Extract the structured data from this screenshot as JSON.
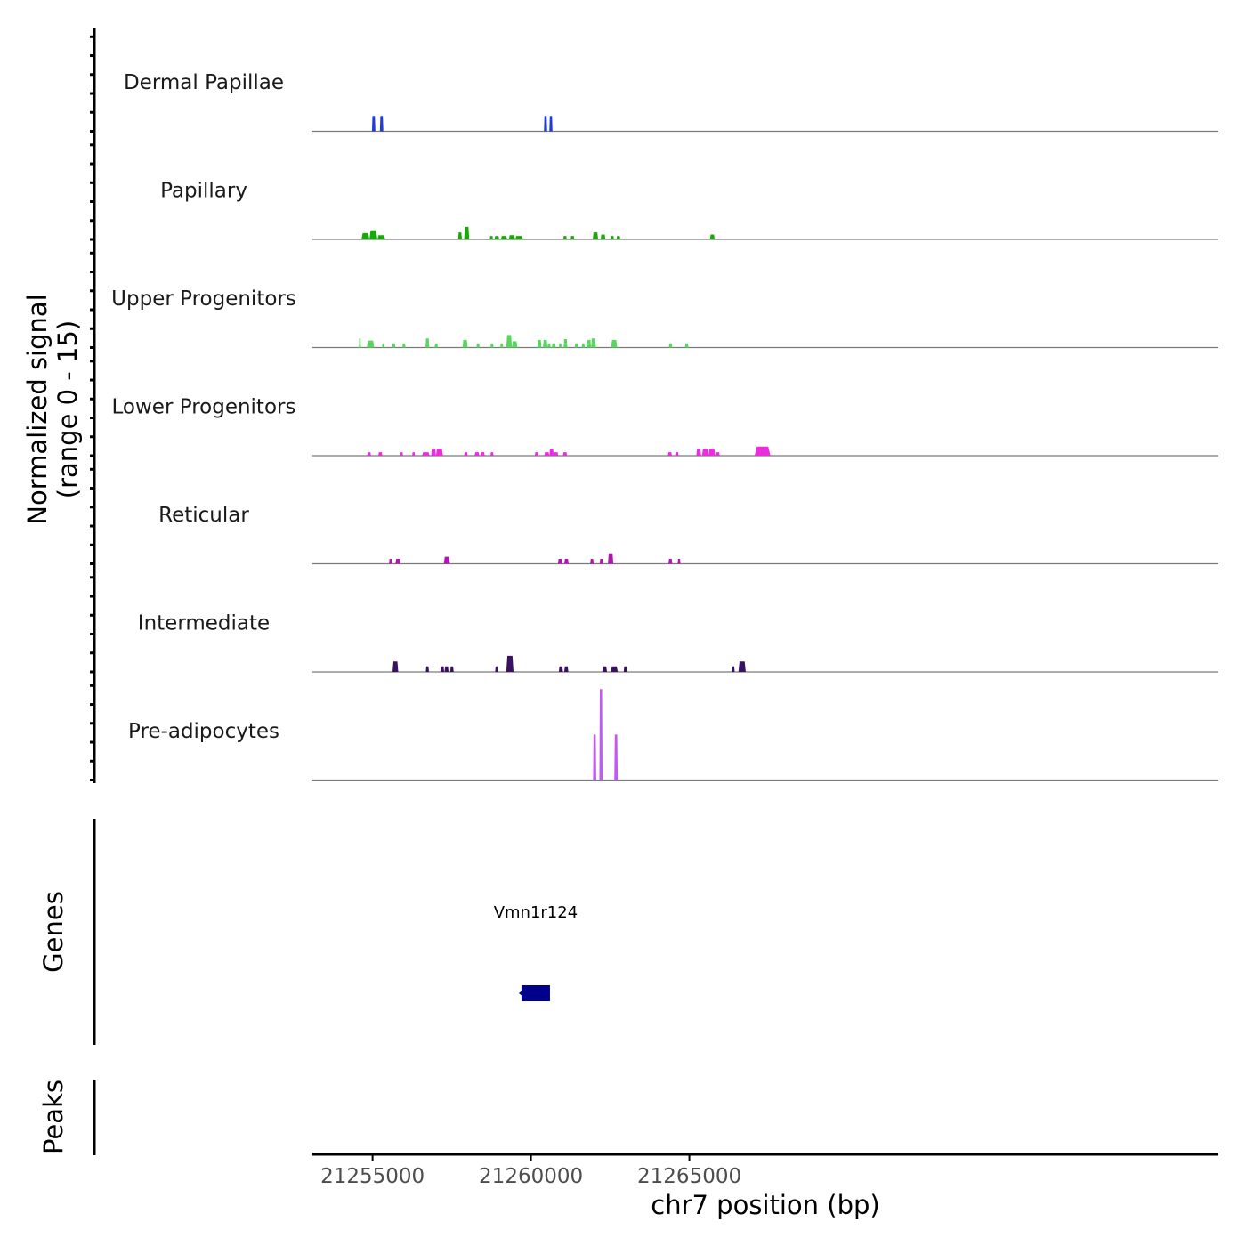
{
  "chart_data": {
    "type": "area",
    "title": "",
    "ylabel": "Normalized signal",
    "ylabel_range": "(range 0 - 15)",
    "xlabel": "chr7 position (bp)",
    "xlim": [
      21253100,
      21281700
    ],
    "ylim": [
      0,
      15
    ],
    "x_ticks": [
      21255000,
      21260000,
      21265000
    ],
    "x_tick_labels": [
      "21255000",
      "21260000",
      "21265000"
    ],
    "genes_label": "Genes",
    "peaks_label": "Peaks",
    "tracks": [
      {
        "name": "Dermal Papillae",
        "color": "#1f3ed8",
        "peaks": [
          {
            "start": 21254980,
            "end": 21255090,
            "height": 2.2
          },
          {
            "start": 21255230,
            "end": 21255340,
            "height": 2.2
          },
          {
            "start": 21260410,
            "end": 21260510,
            "height": 2.2
          },
          {
            "start": 21260580,
            "end": 21260680,
            "height": 2.2
          }
        ]
      },
      {
        "name": "Papillary",
        "color": "#18a80a",
        "peaks": [
          {
            "start": 21254650,
            "end": 21254900,
            "height": 0.9
          },
          {
            "start": 21254900,
            "end": 21255150,
            "height": 1.3
          },
          {
            "start": 21255150,
            "end": 21255400,
            "height": 0.6
          },
          {
            "start": 21257700,
            "end": 21257820,
            "height": 1.0
          },
          {
            "start": 21257890,
            "end": 21258050,
            "height": 1.8
          },
          {
            "start": 21258700,
            "end": 21258800,
            "height": 0.5
          },
          {
            "start": 21258850,
            "end": 21259000,
            "height": 0.5
          },
          {
            "start": 21259050,
            "end": 21259250,
            "height": 0.5
          },
          {
            "start": 21259300,
            "end": 21259500,
            "height": 0.6
          },
          {
            "start": 21259500,
            "end": 21259750,
            "height": 0.5
          },
          {
            "start": 21261020,
            "end": 21261130,
            "height": 0.5
          },
          {
            "start": 21261250,
            "end": 21261370,
            "height": 0.5
          },
          {
            "start": 21261950,
            "end": 21262120,
            "height": 1.0
          },
          {
            "start": 21262200,
            "end": 21262350,
            "height": 0.7
          },
          {
            "start": 21262500,
            "end": 21262620,
            "height": 0.5
          },
          {
            "start": 21262700,
            "end": 21262820,
            "height": 0.5
          },
          {
            "start": 21265650,
            "end": 21265800,
            "height": 0.7
          }
        ]
      },
      {
        "name": "Upper Progenitors",
        "color": "#5ad55f",
        "peaks": [
          {
            "start": 21254570,
            "end": 21254630,
            "height": 1.3
          },
          {
            "start": 21254820,
            "end": 21255050,
            "height": 1.0
          },
          {
            "start": 21255300,
            "end": 21255380,
            "height": 0.6
          },
          {
            "start": 21255620,
            "end": 21255720,
            "height": 0.6
          },
          {
            "start": 21255940,
            "end": 21256040,
            "height": 0.6
          },
          {
            "start": 21256670,
            "end": 21256790,
            "height": 1.3
          },
          {
            "start": 21256960,
            "end": 21257060,
            "height": 0.6
          },
          {
            "start": 21257840,
            "end": 21258000,
            "height": 1.1
          },
          {
            "start": 21258280,
            "end": 21258380,
            "height": 0.6
          },
          {
            "start": 21258720,
            "end": 21258820,
            "height": 0.6
          },
          {
            "start": 21259030,
            "end": 21259120,
            "height": 0.6
          },
          {
            "start": 21259220,
            "end": 21259400,
            "height": 1.8
          },
          {
            "start": 21259400,
            "end": 21259570,
            "height": 0.9
          },
          {
            "start": 21260200,
            "end": 21260330,
            "height": 1.1
          },
          {
            "start": 21260380,
            "end": 21260520,
            "height": 1.1
          },
          {
            "start": 21260520,
            "end": 21260620,
            "height": 0.6
          },
          {
            "start": 21260660,
            "end": 21260780,
            "height": 0.6
          },
          {
            "start": 21260880,
            "end": 21260970,
            "height": 0.6
          },
          {
            "start": 21261030,
            "end": 21261150,
            "height": 1.2
          },
          {
            "start": 21261380,
            "end": 21261480,
            "height": 0.6
          },
          {
            "start": 21261600,
            "end": 21261700,
            "height": 0.6
          },
          {
            "start": 21261750,
            "end": 21261900,
            "height": 1.1
          },
          {
            "start": 21261900,
            "end": 21262050,
            "height": 1.3
          },
          {
            "start": 21262530,
            "end": 21262720,
            "height": 1.1
          },
          {
            "start": 21264350,
            "end": 21264460,
            "height": 0.6
          },
          {
            "start": 21264860,
            "end": 21264970,
            "height": 0.6
          }
        ]
      },
      {
        "name": "Lower Progenitors",
        "color": "#ea2ddd",
        "peaks": [
          {
            "start": 21254830,
            "end": 21254950,
            "height": 0.5
          },
          {
            "start": 21255180,
            "end": 21255310,
            "height": 0.5
          },
          {
            "start": 21255870,
            "end": 21255960,
            "height": 0.5
          },
          {
            "start": 21256250,
            "end": 21256340,
            "height": 0.5
          },
          {
            "start": 21256560,
            "end": 21256800,
            "height": 0.5
          },
          {
            "start": 21256850,
            "end": 21257000,
            "height": 1.0
          },
          {
            "start": 21257000,
            "end": 21257220,
            "height": 1.0
          },
          {
            "start": 21257890,
            "end": 21258000,
            "height": 0.5
          },
          {
            "start": 21258220,
            "end": 21258370,
            "height": 0.5
          },
          {
            "start": 21258400,
            "end": 21258540,
            "height": 0.5
          },
          {
            "start": 21258720,
            "end": 21258820,
            "height": 0.5
          },
          {
            "start": 21260120,
            "end": 21260240,
            "height": 0.5
          },
          {
            "start": 21260420,
            "end": 21260580,
            "height": 0.5
          },
          {
            "start": 21260580,
            "end": 21260720,
            "height": 1.0
          },
          {
            "start": 21260720,
            "end": 21260860,
            "height": 0.5
          },
          {
            "start": 21261010,
            "end": 21261140,
            "height": 0.5
          },
          {
            "start": 21264320,
            "end": 21264450,
            "height": 0.5
          },
          {
            "start": 21264550,
            "end": 21264660,
            "height": 0.5
          },
          {
            "start": 21265220,
            "end": 21265370,
            "height": 1.0
          },
          {
            "start": 21265400,
            "end": 21265600,
            "height": 1.0
          },
          {
            "start": 21265600,
            "end": 21265820,
            "height": 1.0
          },
          {
            "start": 21265840,
            "end": 21265960,
            "height": 0.5
          },
          {
            "start": 21267060,
            "end": 21267560,
            "height": 1.3
          }
        ]
      },
      {
        "name": "Reticular",
        "color": "#b413b4",
        "peaks": [
          {
            "start": 21255520,
            "end": 21255620,
            "height": 0.7
          },
          {
            "start": 21255720,
            "end": 21255880,
            "height": 0.7
          },
          {
            "start": 21257250,
            "end": 21257440,
            "height": 1.0
          },
          {
            "start": 21260850,
            "end": 21260990,
            "height": 0.7
          },
          {
            "start": 21261050,
            "end": 21261190,
            "height": 0.7
          },
          {
            "start": 21261870,
            "end": 21261980,
            "height": 0.7
          },
          {
            "start": 21262170,
            "end": 21262280,
            "height": 0.7
          },
          {
            "start": 21262430,
            "end": 21262600,
            "height": 1.5
          },
          {
            "start": 21264340,
            "end": 21264460,
            "height": 0.7
          },
          {
            "start": 21264630,
            "end": 21264720,
            "height": 0.7
          }
        ]
      },
      {
        "name": "Intermediate",
        "color": "#3a1060",
        "peaks": [
          {
            "start": 21255630,
            "end": 21255810,
            "height": 1.5
          },
          {
            "start": 21256680,
            "end": 21256780,
            "height": 0.8
          },
          {
            "start": 21257140,
            "end": 21257260,
            "height": 0.8
          },
          {
            "start": 21257270,
            "end": 21257400,
            "height": 0.8
          },
          {
            "start": 21257450,
            "end": 21257560,
            "height": 0.8
          },
          {
            "start": 21258870,
            "end": 21258960,
            "height": 0.8
          },
          {
            "start": 21259220,
            "end": 21259450,
            "height": 2.3
          },
          {
            "start": 21260880,
            "end": 21261010,
            "height": 0.8
          },
          {
            "start": 21261050,
            "end": 21261180,
            "height": 0.8
          },
          {
            "start": 21262250,
            "end": 21262400,
            "height": 0.8
          },
          {
            "start": 21262520,
            "end": 21262740,
            "height": 0.8
          },
          {
            "start": 21262930,
            "end": 21263030,
            "height": 0.8
          },
          {
            "start": 21266330,
            "end": 21266430,
            "height": 0.8
          },
          {
            "start": 21266550,
            "end": 21266780,
            "height": 1.5
          }
        ]
      },
      {
        "name": "Pre-adipocytes",
        "color": "#c05af0",
        "peaks": [
          {
            "start": 21261960,
            "end": 21262060,
            "height": 6.5
          },
          {
            "start": 21262160,
            "end": 21262260,
            "height": 13.0
          },
          {
            "start": 21262630,
            "end": 21262740,
            "height": 6.5
          }
        ]
      }
    ],
    "genes": [
      {
        "name": "Vmn1r124",
        "start": 21259700,
        "end": 21260600,
        "strand": "-",
        "color": "#00008b"
      }
    ],
    "peak_regions": []
  }
}
